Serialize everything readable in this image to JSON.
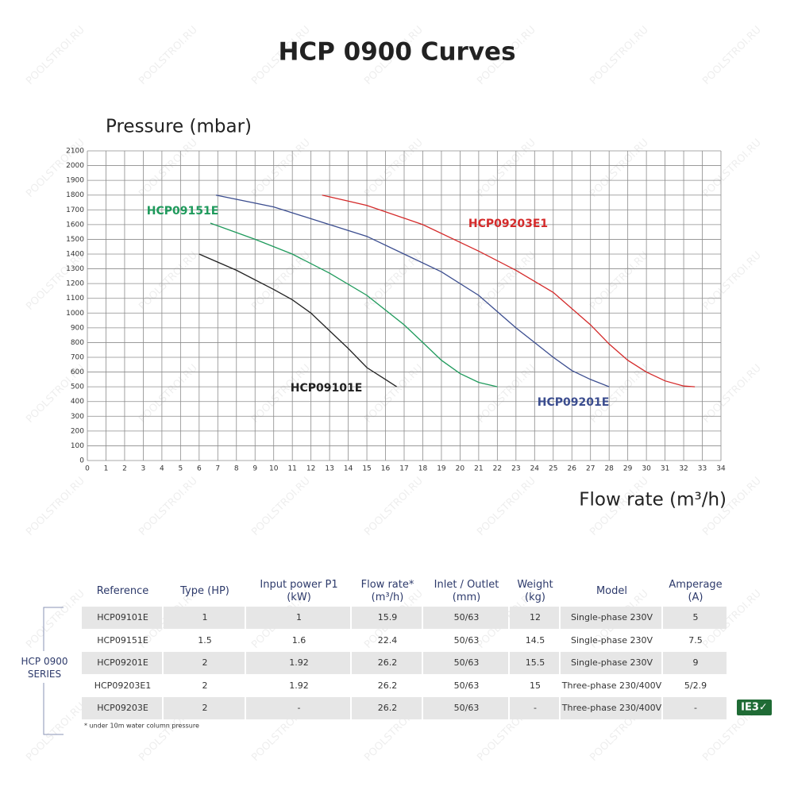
{
  "chart_data": {
    "type": "line",
    "title": "HCP 0900 Curves",
    "ylabel": "Pressure (mbar)",
    "xlabel": "Flow rate (m³/h)",
    "xlim": [
      0,
      34
    ],
    "xticks": [
      0,
      1,
      2,
      3,
      4,
      5,
      6,
      7,
      8,
      9,
      10,
      11,
      12,
      13,
      14,
      15,
      16,
      17,
      18,
      19,
      20,
      21,
      22,
      23,
      24,
      25,
      26,
      27,
      28,
      29,
      30,
      31,
      32,
      33,
      34
    ],
    "ylim": [
      0,
      2100
    ],
    "yticks": [
      0,
      100,
      200,
      300,
      400,
      500,
      600,
      700,
      800,
      900,
      1000,
      1100,
      1200,
      1300,
      1400,
      1500,
      1600,
      1700,
      1800,
      1900,
      2000,
      2100
    ],
    "grid": true,
    "series": [
      {
        "name": "HCP09101E",
        "color": "#222222",
        "x": [
          6,
          8,
          10,
          11,
          12,
          13,
          14,
          15,
          16,
          16.6
        ],
        "values": [
          1400,
          1290,
          1160,
          1090,
          1000,
          880,
          760,
          630,
          550,
          500
        ]
      },
      {
        "name": "HCP09151E",
        "color": "#1f9a5c",
        "x": [
          6.6,
          9,
          11,
          13,
          15,
          17,
          18,
          19,
          20,
          21,
          22
        ],
        "values": [
          1610,
          1500,
          1400,
          1270,
          1120,
          920,
          800,
          680,
          590,
          530,
          500
        ]
      },
      {
        "name": "HCP09201E",
        "color": "#3b4d8f",
        "x": [
          6.9,
          10,
          13,
          15,
          17,
          19,
          21,
          23,
          24,
          25,
          26,
          27,
          28
        ],
        "values": [
          1800,
          1720,
          1600,
          1520,
          1400,
          1280,
          1120,
          900,
          800,
          700,
          610,
          550,
          500
        ]
      },
      {
        "name": "HCP09203E1",
        "color": "#d42a2a",
        "x": [
          12.6,
          15,
          18,
          21,
          23,
          25,
          27,
          28,
          29,
          30,
          31,
          32,
          32.6
        ],
        "values": [
          1800,
          1730,
          1600,
          1420,
          1290,
          1140,
          920,
          790,
          680,
          600,
          540,
          505,
          500
        ]
      }
    ]
  },
  "table": {
    "header": [
      "Reference",
      "Type (HP)",
      "Input power P1\n(kW)",
      "Flow rate*\n(m³/h)",
      "Inlet / Outlet\n(mm)",
      "Weight\n(kg)",
      "Model",
      "Amperage\n(A)"
    ],
    "group": "HCP 0900\nSERIES",
    "rows": [
      [
        "HCP09101E",
        "1",
        "1",
        "15.9",
        "50/63",
        "12",
        "Single-phase 230V",
        "5"
      ],
      [
        "HCP09151E",
        "1.5",
        "1.6",
        "22.4",
        "50/63",
        "14.5",
        "Single-phase 230V",
        "7.5"
      ],
      [
        "HCP09201E",
        "2",
        "1.92",
        "26.2",
        "50/63",
        "15.5",
        "Single-phase 230V",
        "9"
      ],
      [
        "HCP09203E1",
        "2",
        "1.92",
        "26.2",
        "50/63",
        "15",
        "Three-phase 230/400V",
        "5/2.9"
      ],
      [
        "HCP09203E",
        "2",
        "-",
        "26.2",
        "50/63",
        "-",
        "Three-phase 230/400V",
        "-"
      ]
    ],
    "footnote": "* under 10m water column pressure",
    "badge": "IE3✓"
  },
  "watermark": "POOLSTROI.RU"
}
